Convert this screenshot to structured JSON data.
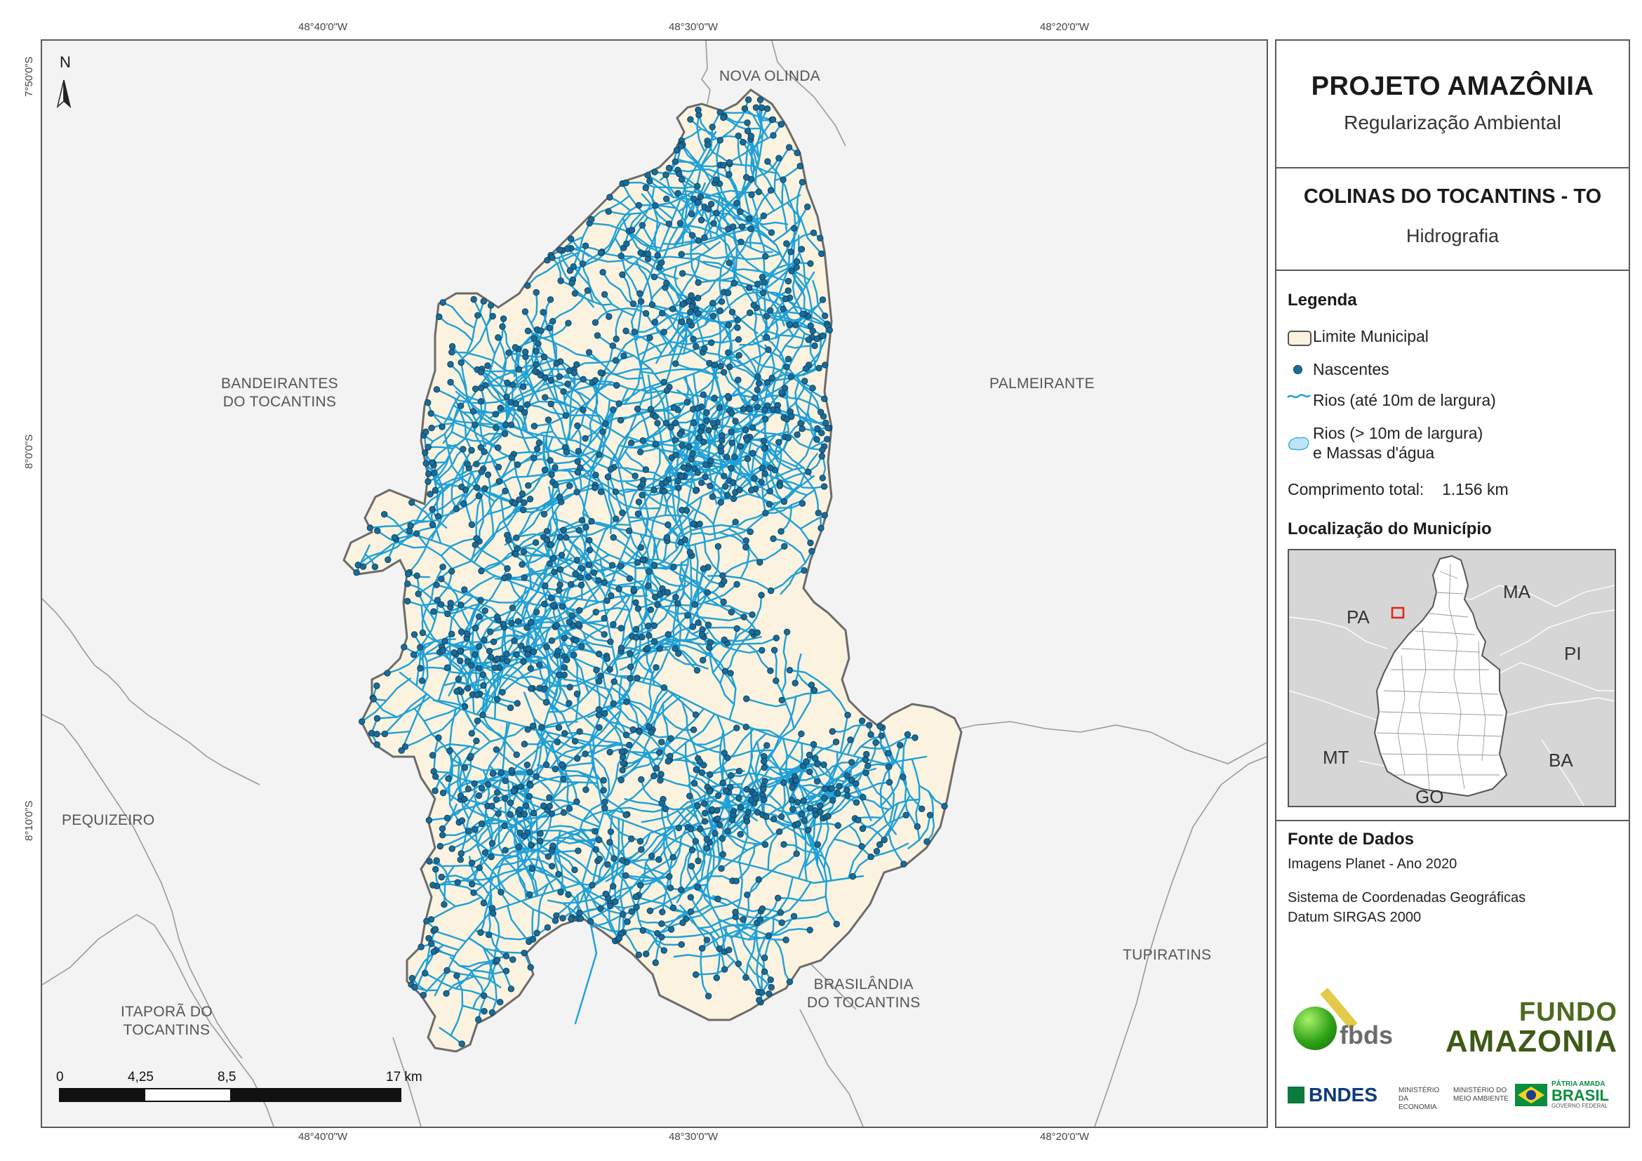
{
  "coordinates": {
    "top": [
      "48°40'0\"W",
      "48°30'0\"W",
      "48°20'0\"W"
    ],
    "bottom": [
      "48°40'0\"W",
      "48°30'0\"W",
      "48°20'0\"W"
    ],
    "left": [
      "7°50'0\"S",
      "8°0'0\"S",
      "8°10'0\"S"
    ]
  },
  "north_arrow": {
    "label": "N"
  },
  "municipalities": {
    "nova_olinda": "NOVA OLINDA",
    "bandeirantes": "BANDEIRANTES\nDO TOCANTINS",
    "palmeirante": "PALMEIRANTE",
    "pequizeiro": "PEQUIZEIRO",
    "itapora": "ITAPORÃ DO\nTOCANTINS",
    "brasilandia": "BRASILÂNDIA\nDO TOCANTINS",
    "tupiratins": "TUPIRATINS"
  },
  "scale_bar": {
    "labels": [
      "0",
      "4,25",
      "8,5",
      "17 km"
    ]
  },
  "panel": {
    "project_title": "PROJETO AMAZÔNIA",
    "project_subtitle": "Regularização Ambiental",
    "municipality_title": "COLINAS DO TOCANTINS - TO",
    "theme": "Hidrografia",
    "legend": {
      "title": "Legenda",
      "items": [
        "Limite Municipal",
        "Nascentes",
        "Rios (até 10m de largura)",
        "Rios (> 10m de largura)",
        "e Massas d'água"
      ],
      "total_length_label": "Comprimento total:",
      "total_length_value": "1.156 km"
    },
    "location": {
      "title": "Localização do Município",
      "states": [
        "PA",
        "MA",
        "PI",
        "MT",
        "BA",
        "GO"
      ]
    },
    "sources": {
      "title": "Fonte de Dados",
      "line1": "Imagens Planet - Ano 2020",
      "line2": "Sistema de Coordenadas Geográficas",
      "line3": "Datum SIRGAS 2000"
    },
    "logos": {
      "fbds": "fbds",
      "fundo_line1": "FUNDO",
      "fundo_line2": "AMAZONIA",
      "bndes": "BNDES",
      "min_economia": "MINISTÉRIO DA ECONOMIA",
      "min_ambiente": "MINISTÉRIO DO MEIO AMBIENTE",
      "patria": "PÁTRIA AMADA",
      "brasil": "BRASIL",
      "governo": "GOVERNO FEDERAL"
    }
  },
  "colors": {
    "municipality_fill": "#fbf3df",
    "river": "#1ea0d8",
    "spring": "#1a6c9a",
    "neighbor_fill": "#f3f3f3",
    "inset_fill": "#d4d4d4",
    "inset_highlight": "#e8201a"
  }
}
